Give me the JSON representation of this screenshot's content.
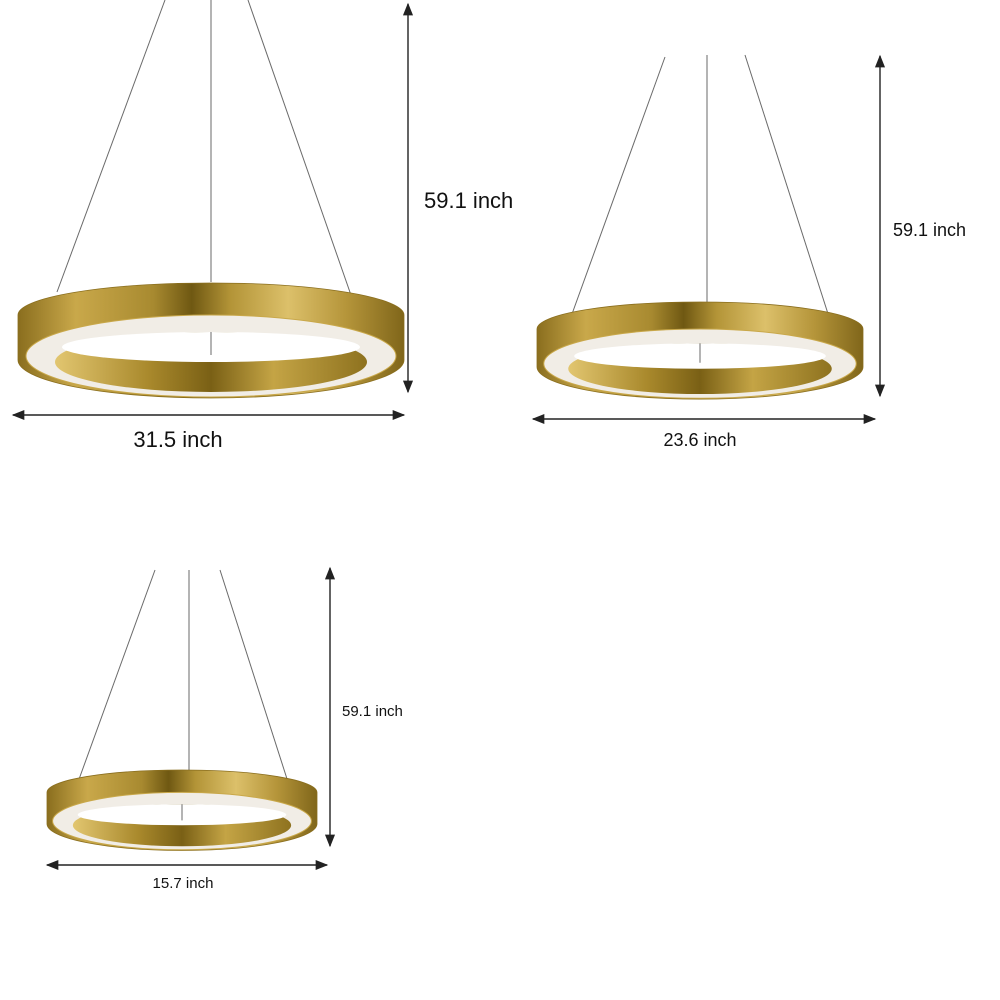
{
  "products": [
    {
      "height_label": "59.1 inch",
      "width_label": "31.5 inch"
    },
    {
      "height_label": "59.1 inch",
      "width_label": "23.6 inch"
    },
    {
      "height_label": "59.1 inch",
      "width_label": "15.7 inch"
    }
  ],
  "colors": {
    "gold_dark": "#7d6418",
    "gold_mid": "#b8952f",
    "gold_light": "#e0c46a",
    "diffuser": "#f1ede6",
    "arrow": "#222222"
  }
}
